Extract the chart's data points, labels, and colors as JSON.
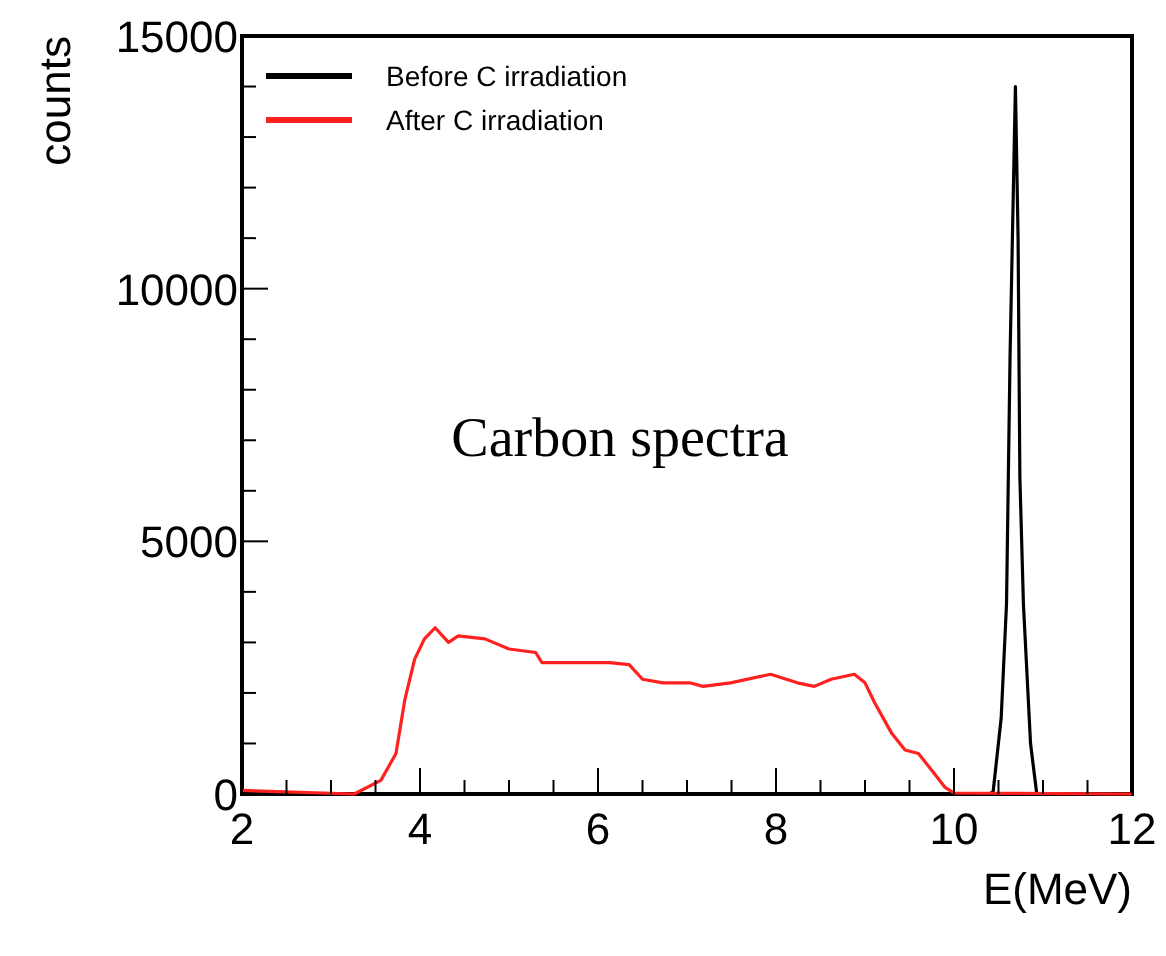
{
  "chart_data": {
    "type": "line",
    "xlabel": "E(MeV)",
    "ylabel": "counts",
    "annotations": [
      "Carbon spectra"
    ],
    "xlim": [
      2,
      12
    ],
    "ylim": [
      0,
      15000
    ],
    "xticks": [
      2,
      {
        "value": 2.5,
        "label": null
      },
      {
        "value": 3,
        "label": null
      },
      {
        "value": 3.5,
        "label": null
      },
      4,
      {
        "value": 4.5,
        "label": null
      },
      {
        "value": 5,
        "label": null
      },
      {
        "value": 5.5,
        "label": null
      },
      6,
      {
        "value": 6.5,
        "label": null
      },
      {
        "value": 7,
        "label": null
      },
      {
        "value": 7.5,
        "label": null
      },
      8,
      {
        "value": 8.5,
        "label": null
      },
      {
        "value": 9,
        "label": null
      },
      {
        "value": 9.5,
        "label": null
      },
      10,
      {
        "value": 10.5,
        "label": null
      },
      {
        "value": 11,
        "label": null
      },
      {
        "value": 11.5,
        "label": null
      },
      12
    ],
    "yticks": [
      0,
      {
        "value": 1000,
        "label": null
      },
      {
        "value": 2000,
        "label": null
      },
      {
        "value": 3000,
        "label": null
      },
      {
        "value": 4000,
        "label": null
      },
      5000,
      {
        "value": 6000,
        "label": null
      },
      {
        "value": 7000,
        "label": null
      },
      {
        "value": 8000,
        "label": null
      },
      {
        "value": 9000,
        "label": null
      },
      10000,
      {
        "value": 11000,
        "label": null
      },
      {
        "value": 12000,
        "label": null
      },
      {
        "value": 13000,
        "label": null
      },
      {
        "value": 14000,
        "label": null
      },
      15000
    ],
    "grid": false,
    "legend": "top left",
    "marker": "none",
    "line_style": "solid",
    "series": [
      {
        "name": "Before C irradiation",
        "color": "#000000",
        "x": [
          2,
          10.4,
          10.44,
          10.53,
          10.59,
          10.63,
          10.69,
          10.72,
          10.74,
          10.78,
          10.86,
          10.93,
          12
        ],
        "values": [
          0,
          0,
          50,
          1500,
          3760,
          8680,
          14000,
          11000,
          6280,
          3760,
          1000,
          0,
          0
        ]
      },
      {
        "name": "After C irradiation",
        "color": "#ff2020",
        "x": [
          2,
          3.26,
          3.56,
          3.73,
          3.83,
          3.94,
          4.05,
          4.17,
          4.32,
          4.43,
          4.73,
          5.0,
          5.3,
          5.37,
          5.75,
          6.13,
          6.35,
          6.5,
          6.73,
          7.03,
          7.18,
          7.49,
          7.94,
          8.24,
          8.43,
          8.62,
          8.88,
          9.0,
          9.11,
          9.3,
          9.45,
          9.6,
          9.75,
          9.9,
          10.0,
          12
        ],
        "values": [
          70,
          0,
          270,
          800,
          1870,
          2670,
          3070,
          3290,
          3000,
          3130,
          3070,
          2870,
          2800,
          2600,
          2600,
          2600,
          2560,
          2270,
          2200,
          2200,
          2130,
          2200,
          2370,
          2200,
          2130,
          2270,
          2370,
          2200,
          1800,
          1200,
          870,
          800,
          470,
          130,
          20,
          0
        ]
      }
    ]
  }
}
